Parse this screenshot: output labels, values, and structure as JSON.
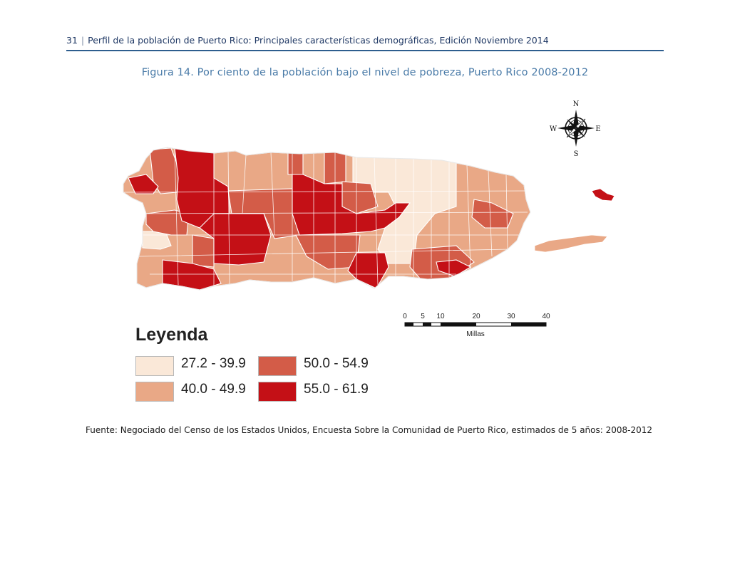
{
  "header": {
    "page_number": "31",
    "title": "Perfil de la población de Puerto Rico: Principales características demográficas, Edición Noviembre 2014"
  },
  "figure": {
    "title": "Figura 14. Por ciento de la población bajo el nivel de pobreza, Puerto Rico 2008-2012"
  },
  "compass": {
    "north": "N",
    "south": "S",
    "east": "E",
    "west": "W"
  },
  "scale_bar": {
    "ticks": [
      "0",
      "5",
      "10",
      "20",
      "30",
      "40"
    ],
    "unit": "Millas"
  },
  "legend": {
    "title": "Leyenda",
    "items": [
      {
        "label": "27.2 - 39.9",
        "color": "#fae8d8"
      },
      {
        "label": "40.0 - 49.9",
        "color": "#e9a886"
      },
      {
        "label": "50.0 - 54.9",
        "color": "#d35c48"
      },
      {
        "label": "55.0 - 61.9",
        "color": "#c41016"
      }
    ]
  },
  "source": "Fuente: Negociado del Censo de los Estados Unidos, Encuesta Sobre la Comunidad de Puerto Rico, estimados de 5 años: 2008-2012"
}
